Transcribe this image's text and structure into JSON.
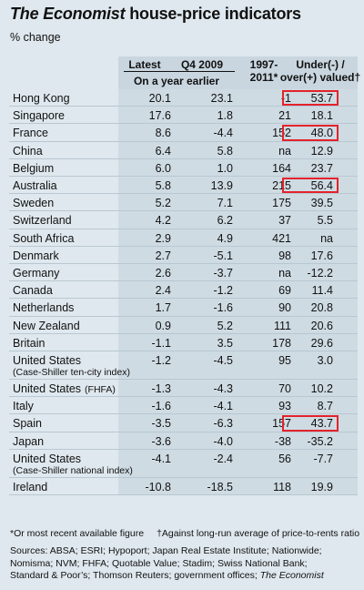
{
  "title_italic": "The Economist",
  "title_rest": " house-price indicators",
  "subtitle": "% change",
  "headers": {
    "latest": "Latest",
    "q4_2009": "Q4 2009",
    "year_earlier": "On a year earlier",
    "period_line1": "1997-",
    "period_line2": "2011*",
    "valued_line1": "Under(-) /",
    "valued_line2": "over(+) valued†"
  },
  "chart_data": {
    "type": "table",
    "columns": [
      "Latest on a year earlier",
      "Q4 2009 on a year earlier",
      "1997-2011*",
      "Under(-) / over(+) valued†"
    ],
    "rows": [
      {
        "country": "Hong Kong",
        "latest": "20.1",
        "q4_2009": "23.1",
        "since_1997": "-1",
        "valued": "53.7",
        "highlight": true
      },
      {
        "country": "Singapore",
        "latest": "17.6",
        "q4_2009": "1.8",
        "since_1997": "21",
        "valued": "18.1",
        "highlight": false
      },
      {
        "country": "France",
        "latest": "8.6",
        "q4_2009": "-4.4",
        "since_1997": "152",
        "valued": "48.0",
        "highlight": true
      },
      {
        "country": "China",
        "latest": "6.4",
        "q4_2009": "5.8",
        "since_1997": "na",
        "valued": "12.9",
        "highlight": false
      },
      {
        "country": "Belgium",
        "latest": "6.0",
        "q4_2009": "1.0",
        "since_1997": "164",
        "valued": "23.7",
        "highlight": false
      },
      {
        "country": "Australia",
        "latest": "5.8",
        "q4_2009": "13.9",
        "since_1997": "215",
        "valued": "56.4",
        "highlight": true
      },
      {
        "country": "Sweden",
        "latest": "5.2",
        "q4_2009": "7.1",
        "since_1997": "175",
        "valued": "39.5",
        "highlight": false
      },
      {
        "country": "Switzerland",
        "latest": "4.2",
        "q4_2009": "6.2",
        "since_1997": "37",
        "valued": "5.5",
        "highlight": false
      },
      {
        "country": "South Africa",
        "latest": "2.9",
        "q4_2009": "4.9",
        "since_1997": "421",
        "valued": "na",
        "highlight": false
      },
      {
        "country": "Denmark",
        "latest": "2.7",
        "q4_2009": "-5.1",
        "since_1997": "98",
        "valued": "17.6",
        "highlight": false
      },
      {
        "country": "Germany",
        "latest": "2.6",
        "q4_2009": "-3.7",
        "since_1997": "na",
        "valued": "-12.2",
        "highlight": false
      },
      {
        "country": "Canada",
        "latest": "2.4",
        "q4_2009": "-1.2",
        "since_1997": "69",
        "valued": "11.4",
        "highlight": false
      },
      {
        "country": "Netherlands",
        "latest": "1.7",
        "q4_2009": "-1.6",
        "since_1997": "90",
        "valued": "20.8",
        "highlight": false
      },
      {
        "country": "New Zealand",
        "latest": "0.9",
        "q4_2009": "5.2",
        "since_1997": "111",
        "valued": "20.6",
        "highlight": false
      },
      {
        "country": "Britain",
        "latest": "-1.1",
        "q4_2009": "3.5",
        "since_1997": "178",
        "valued": "29.6",
        "highlight": false
      },
      {
        "country": "United States",
        "note": "(Case-Shiller ten-city index)",
        "latest": "-1.2",
        "q4_2009": "-4.5",
        "since_1997": "95",
        "valued": "3.0",
        "highlight": false
      },
      {
        "country": "United States",
        "note": "(FHFA)",
        "inline_note": true,
        "latest": "-1.3",
        "q4_2009": "-4.3",
        "since_1997": "70",
        "valued": "10.2",
        "highlight": false
      },
      {
        "country": "Italy",
        "latest": "-1.6",
        "q4_2009": "-4.1",
        "since_1997": "93",
        "valued": "8.7",
        "highlight": false
      },
      {
        "country": "Spain",
        "latest": "-3.5",
        "q4_2009": "-6.3",
        "since_1997": "157",
        "valued": "43.7",
        "highlight": true
      },
      {
        "country": "Japan",
        "latest": "-3.6",
        "q4_2009": "-4.0",
        "since_1997": "-38",
        "valued": "-35.2",
        "highlight": false
      },
      {
        "country": "United States",
        "note": "(Case-Shiller national index)",
        "latest": "-4.1",
        "q4_2009": "-2.4",
        "since_1997": "56",
        "valued": "-7.7",
        "highlight": false
      },
      {
        "country": "Ireland",
        "latest": "-10.8",
        "q4_2009": "-18.5",
        "since_1997": "118",
        "valued": "19.9",
        "highlight": false
      }
    ]
  },
  "footnotes": {
    "star": "*Or most recent available figure",
    "dagger": "†Against long-run average of price-to-rents ratio",
    "sources_line1": "Sources: ABSA; ESRI; Hypoport; Japan Real Estate Institute; Nationwide;",
    "sources_line2": "Nomisma; NVM; FHFA; Quotable Value; Stadim; Swiss National Bank;",
    "sources_line3": "Standard & Poor’s; Thomson Reuters; government offices;",
    "sources_line3_italic": " The Economist"
  },
  "colors": {
    "highlight": "#e4222b",
    "background": "#dfe8ee",
    "header_band": "#c9d6df"
  }
}
